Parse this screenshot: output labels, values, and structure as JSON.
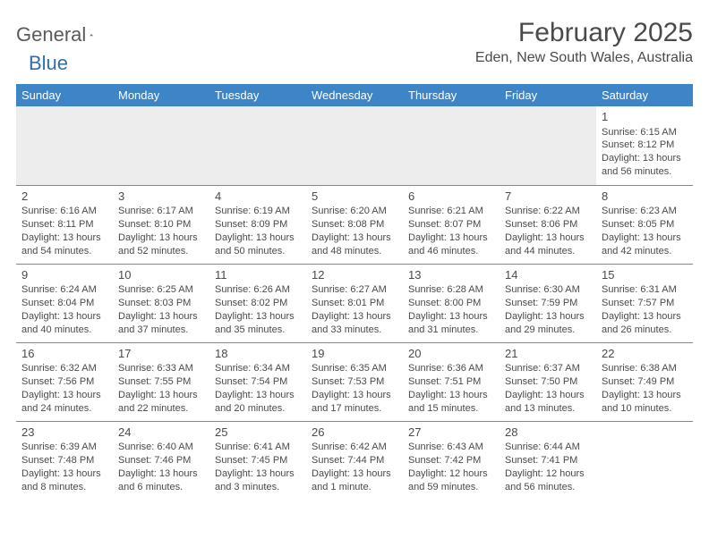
{
  "logo": {
    "general": "General",
    "blue": "Blue"
  },
  "title": "February 2025",
  "location": "Eden, New South Wales, Australia",
  "colors": {
    "header_bg": "#3d85c6",
    "header_text": "#ffffff",
    "text": "#4a4a4a",
    "border": "#7a8a99",
    "empty_bg": "#ededed",
    "logo_blue": "#2f6fb0",
    "logo_gray": "#5a5a5a"
  },
  "day_names": [
    "Sunday",
    "Monday",
    "Tuesday",
    "Wednesday",
    "Thursday",
    "Friday",
    "Saturday"
  ],
  "weeks": [
    [
      null,
      null,
      null,
      null,
      null,
      null,
      {
        "n": "1",
        "sr": "Sunrise: 6:15 AM",
        "ss": "Sunset: 8:12 PM",
        "dl": "Daylight: 13 hours and 56 minutes."
      }
    ],
    [
      {
        "n": "2",
        "sr": "Sunrise: 6:16 AM",
        "ss": "Sunset: 8:11 PM",
        "dl": "Daylight: 13 hours and 54 minutes."
      },
      {
        "n": "3",
        "sr": "Sunrise: 6:17 AM",
        "ss": "Sunset: 8:10 PM",
        "dl": "Daylight: 13 hours and 52 minutes."
      },
      {
        "n": "4",
        "sr": "Sunrise: 6:19 AM",
        "ss": "Sunset: 8:09 PM",
        "dl": "Daylight: 13 hours and 50 minutes."
      },
      {
        "n": "5",
        "sr": "Sunrise: 6:20 AM",
        "ss": "Sunset: 8:08 PM",
        "dl": "Daylight: 13 hours and 48 minutes."
      },
      {
        "n": "6",
        "sr": "Sunrise: 6:21 AM",
        "ss": "Sunset: 8:07 PM",
        "dl": "Daylight: 13 hours and 46 minutes."
      },
      {
        "n": "7",
        "sr": "Sunrise: 6:22 AM",
        "ss": "Sunset: 8:06 PM",
        "dl": "Daylight: 13 hours and 44 minutes."
      },
      {
        "n": "8",
        "sr": "Sunrise: 6:23 AM",
        "ss": "Sunset: 8:05 PM",
        "dl": "Daylight: 13 hours and 42 minutes."
      }
    ],
    [
      {
        "n": "9",
        "sr": "Sunrise: 6:24 AM",
        "ss": "Sunset: 8:04 PM",
        "dl": "Daylight: 13 hours and 40 minutes."
      },
      {
        "n": "10",
        "sr": "Sunrise: 6:25 AM",
        "ss": "Sunset: 8:03 PM",
        "dl": "Daylight: 13 hours and 37 minutes."
      },
      {
        "n": "11",
        "sr": "Sunrise: 6:26 AM",
        "ss": "Sunset: 8:02 PM",
        "dl": "Daylight: 13 hours and 35 minutes."
      },
      {
        "n": "12",
        "sr": "Sunrise: 6:27 AM",
        "ss": "Sunset: 8:01 PM",
        "dl": "Daylight: 13 hours and 33 minutes."
      },
      {
        "n": "13",
        "sr": "Sunrise: 6:28 AM",
        "ss": "Sunset: 8:00 PM",
        "dl": "Daylight: 13 hours and 31 minutes."
      },
      {
        "n": "14",
        "sr": "Sunrise: 6:30 AM",
        "ss": "Sunset: 7:59 PM",
        "dl": "Daylight: 13 hours and 29 minutes."
      },
      {
        "n": "15",
        "sr": "Sunrise: 6:31 AM",
        "ss": "Sunset: 7:57 PM",
        "dl": "Daylight: 13 hours and 26 minutes."
      }
    ],
    [
      {
        "n": "16",
        "sr": "Sunrise: 6:32 AM",
        "ss": "Sunset: 7:56 PM",
        "dl": "Daylight: 13 hours and 24 minutes."
      },
      {
        "n": "17",
        "sr": "Sunrise: 6:33 AM",
        "ss": "Sunset: 7:55 PM",
        "dl": "Daylight: 13 hours and 22 minutes."
      },
      {
        "n": "18",
        "sr": "Sunrise: 6:34 AM",
        "ss": "Sunset: 7:54 PM",
        "dl": "Daylight: 13 hours and 20 minutes."
      },
      {
        "n": "19",
        "sr": "Sunrise: 6:35 AM",
        "ss": "Sunset: 7:53 PM",
        "dl": "Daylight: 13 hours and 17 minutes."
      },
      {
        "n": "20",
        "sr": "Sunrise: 6:36 AM",
        "ss": "Sunset: 7:51 PM",
        "dl": "Daylight: 13 hours and 15 minutes."
      },
      {
        "n": "21",
        "sr": "Sunrise: 6:37 AM",
        "ss": "Sunset: 7:50 PM",
        "dl": "Daylight: 13 hours and 13 minutes."
      },
      {
        "n": "22",
        "sr": "Sunrise: 6:38 AM",
        "ss": "Sunset: 7:49 PM",
        "dl": "Daylight: 13 hours and 10 minutes."
      }
    ],
    [
      {
        "n": "23",
        "sr": "Sunrise: 6:39 AM",
        "ss": "Sunset: 7:48 PM",
        "dl": "Daylight: 13 hours and 8 minutes."
      },
      {
        "n": "24",
        "sr": "Sunrise: 6:40 AM",
        "ss": "Sunset: 7:46 PM",
        "dl": "Daylight: 13 hours and 6 minutes."
      },
      {
        "n": "25",
        "sr": "Sunrise: 6:41 AM",
        "ss": "Sunset: 7:45 PM",
        "dl": "Daylight: 13 hours and 3 minutes."
      },
      {
        "n": "26",
        "sr": "Sunrise: 6:42 AM",
        "ss": "Sunset: 7:44 PM",
        "dl": "Daylight: 13 hours and 1 minute."
      },
      {
        "n": "27",
        "sr": "Sunrise: 6:43 AM",
        "ss": "Sunset: 7:42 PM",
        "dl": "Daylight: 12 hours and 59 minutes."
      },
      {
        "n": "28",
        "sr": "Sunrise: 6:44 AM",
        "ss": "Sunset: 7:41 PM",
        "dl": "Daylight: 12 hours and 56 minutes."
      },
      null
    ]
  ]
}
